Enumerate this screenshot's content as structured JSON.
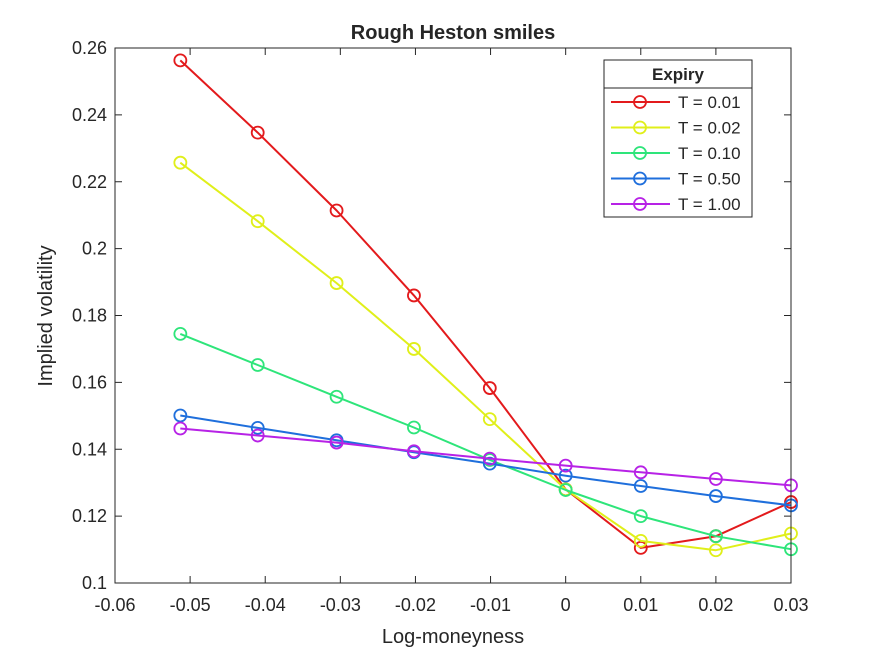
{
  "chart_data": {
    "type": "line",
    "title": "Rough Heston smiles",
    "xlabel": "Log-moneyness",
    "ylabel": "Implied volatility",
    "xlim": [
      -0.06,
      0.03
    ],
    "ylim": [
      0.1,
      0.26
    ],
    "xticks": [
      "-0.06",
      "-0.05",
      "-0.04",
      "-0.03",
      "-0.02",
      "-0.01",
      "0",
      "0.01",
      "0.02",
      "0.03"
    ],
    "xtick_values": [
      -0.06,
      -0.05,
      -0.04,
      -0.03,
      -0.02,
      -0.01,
      0,
      0.01,
      0.02,
      0.03
    ],
    "yticks": [
      "0.1",
      "0.12",
      "0.14",
      "0.16",
      "0.18",
      "0.2",
      "0.22",
      "0.24",
      "0.26"
    ],
    "ytick_values": [
      0.1,
      0.12,
      0.14,
      0.16,
      0.18,
      0.2,
      0.22,
      0.24,
      0.26
    ],
    "grid": false,
    "legend": {
      "title": "Expiry",
      "placement": "top-right"
    },
    "marker": "circle",
    "x": [
      -0.0513,
      -0.041,
      -0.0305,
      -0.0202,
      -0.0101,
      0,
      0.01,
      0.02,
      0.03
    ],
    "series": [
      {
        "name": "T = 0.01",
        "color": "#e31a1c",
        "values": [
          0.2563,
          0.2347,
          0.2114,
          0.186,
          0.1583,
          0.128,
          0.1105,
          0.114,
          0.1242
        ]
      },
      {
        "name": "T = 0.02",
        "color": "#e0ef1a",
        "values": [
          0.2257,
          0.2082,
          0.1897,
          0.17,
          0.149,
          0.128,
          0.1126,
          0.1098,
          0.1148
        ]
      },
      {
        "name": "T = 0.10",
        "color": "#2ee57a",
        "values": [
          0.1745,
          0.1652,
          0.1557,
          0.1465,
          0.1368,
          0.1278,
          0.12,
          0.114,
          0.1101
        ]
      },
      {
        "name": "T = 0.50",
        "color": "#1f6fdc",
        "values": [
          0.1501,
          0.1464,
          0.1427,
          0.1391,
          0.1357,
          0.1321,
          0.129,
          0.126,
          0.1232
        ]
      },
      {
        "name": "T = 1.00",
        "color": "#b722e6",
        "values": [
          0.1462,
          0.1441,
          0.142,
          0.1394,
          0.1372,
          0.1351,
          0.1331,
          0.1311,
          0.1292
        ]
      }
    ]
  }
}
